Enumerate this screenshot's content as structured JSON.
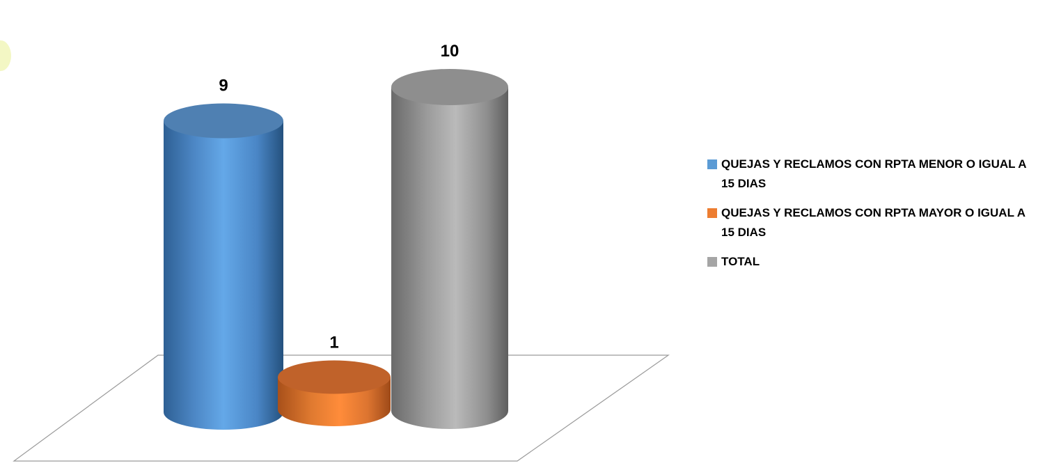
{
  "chart_data": {
    "type": "bar",
    "title": "",
    "xlabel": "",
    "ylabel": "",
    "ylim": [
      0,
      10
    ],
    "grid": false,
    "legend_position": "right",
    "data_labels": true,
    "categories": [
      "QUEJAS Y RECLAMOS CON RPTA MENOR O IGUAL A 15 DIAS",
      "QUEJAS Y RECLAMOS CON RPTA MAYOR O IGUAL A 15 DIAS",
      "TOTAL"
    ],
    "values": [
      9,
      1,
      10
    ],
    "value_labels": [
      "9",
      "1",
      "10"
    ],
    "colors": [
      "#5B9BD5",
      "#ED7D31",
      "#A5A5A5"
    ]
  },
  "legend": {
    "items": [
      {
        "label": "QUEJAS Y RECLAMOS CON RPTA MENOR O IGUAL A 15 DIAS",
        "color": "#5B9BD5"
      },
      {
        "label": "QUEJAS Y RECLAMOS CON RPTA MAYOR O IGUAL A 15 DIAS",
        "color": "#ED7D31"
      },
      {
        "label": "TOTAL",
        "color": "#A5A5A5"
      }
    ]
  }
}
